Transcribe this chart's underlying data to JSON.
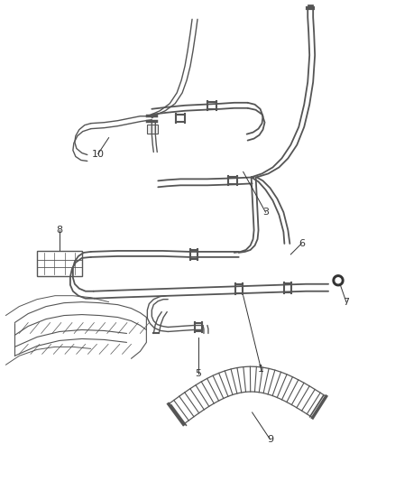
{
  "background_color": "#ffffff",
  "line_color": "#555555",
  "label_color": "#333333",
  "label_fontsize": 8,
  "fig_width": 4.38,
  "fig_height": 5.33,
  "dpi": 100
}
